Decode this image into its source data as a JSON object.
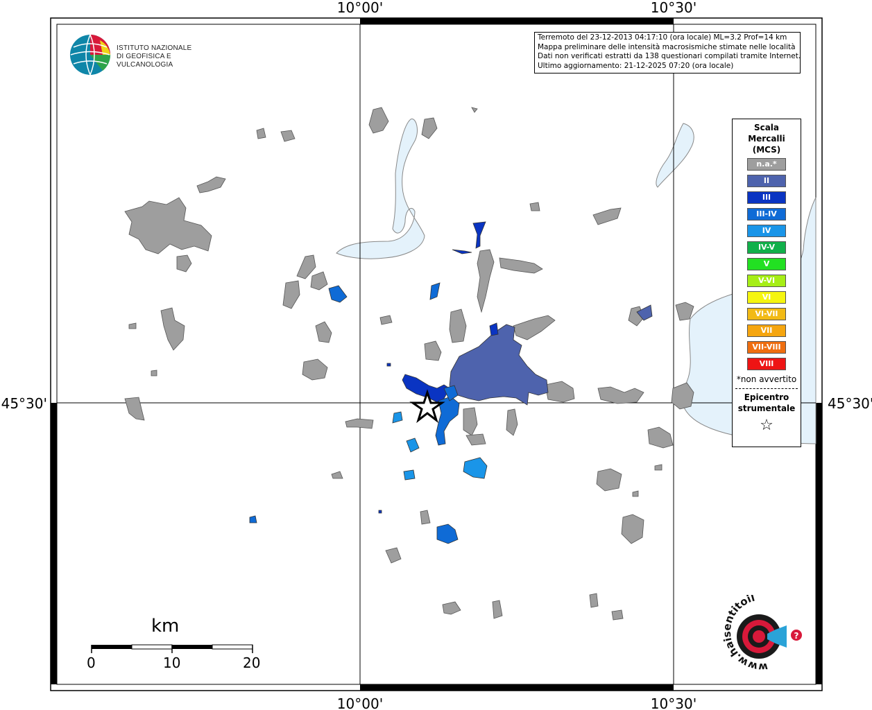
{
  "map": {
    "lon_labels": [
      "10°00'",
      "10°30'"
    ],
    "lat_labels": [
      "45°30'"
    ],
    "info": {
      "line1": "Terremoto del 23-12-2013 04:17:10 (ora locale) ML=3.2 Prof=14 km",
      "line2": "Mappa preliminare delle intensità macrosismiche stimate nelle località",
      "line3": "Dati non verificati estratti da 138 questionari compilati tramite Internet.",
      "line4": "Ultimo aggiornamento: 21-12-2025 07:20 (ora locale)"
    },
    "colors": {
      "na": "#9e9e9e",
      "II": "#4e63ad",
      "III": "#0a34c2",
      "III_IV": "#0f6bd6",
      "IV": "#1a95e8",
      "lake": "#e4f2fb"
    }
  },
  "logo": {
    "line1": "ISTITUTO NAZIONALE",
    "line2": "DI GEOFISICA E VULCANOLOGIA"
  },
  "legend": {
    "title1": "Scala",
    "title2": "Mercalli",
    "title3": "(MCS)",
    "items": [
      {
        "label": "n.a.*",
        "color": "#9e9e9e"
      },
      {
        "label": "II",
        "color": "#4e63ad"
      },
      {
        "label": "III",
        "color": "#0a34c2"
      },
      {
        "label": "III-IV",
        "color": "#0f6bd6"
      },
      {
        "label": "IV",
        "color": "#1a95e8"
      },
      {
        "label": "IV-V",
        "color": "#11b04a"
      },
      {
        "label": "V",
        "color": "#22e022"
      },
      {
        "label": "V-VI",
        "color": "#a6ee16"
      },
      {
        "label": "VI",
        "color": "#f5f50f"
      },
      {
        "label": "VI-VII",
        "color": "#f2ba14"
      },
      {
        "label": "VII",
        "color": "#f5a50f"
      },
      {
        "label": "VII-VIII",
        "color": "#ef6e10"
      },
      {
        "label": "VIII",
        "color": "#ee1414"
      }
    ],
    "note": "*non avvertito",
    "epi1": "Epicentro",
    "epi2": "strumentale",
    "star": "☆"
  },
  "scale": {
    "unit": "km",
    "ticks": [
      "0",
      "10",
      "20"
    ]
  },
  "hai": {
    "text": "www.haisentitoilterremoto.it",
    "q": "?"
  }
}
